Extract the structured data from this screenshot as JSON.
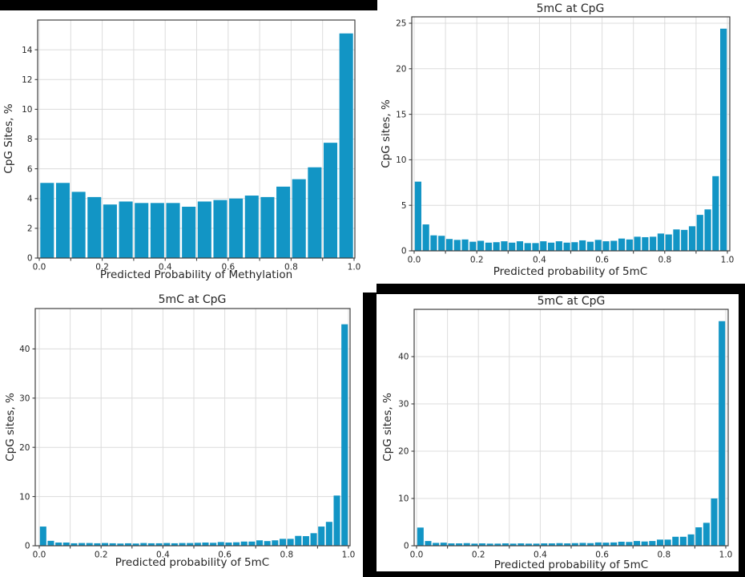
{
  "style": {
    "bar_color": "#1295c5",
    "grid_color": "#dcdcdc",
    "spine_color": "#3f3f3f",
    "text_color": "#262626",
    "redaction_color": "#000000",
    "background": "#ffffff"
  },
  "chart_data": [
    {
      "type": "bar",
      "position": "top-left",
      "title": "",
      "xlabel": "Predicted Probability of Methylation",
      "ylabel": "CpG Sites, %",
      "bin_start": 0.0,
      "bin_width": 0.05,
      "values": [
        5.05,
        5.05,
        4.45,
        4.1,
        3.6,
        3.8,
        3.7,
        3.7,
        3.7,
        3.45,
        3.8,
        3.9,
        4.0,
        4.2,
        4.1,
        4.8,
        5.3,
        6.1,
        7.75,
        15.1
      ],
      "xlim": [
        0.0,
        1.0
      ],
      "ylim": [
        0,
        16
      ],
      "xticks": [
        0.0,
        0.2,
        0.4,
        0.6,
        0.8,
        1.0
      ],
      "xtick_labels": [
        "0.0",
        "0.2",
        "0.4",
        "0.6",
        "0.8",
        "1.0"
      ],
      "yticks": [
        0,
        2,
        4,
        6,
        8,
        10,
        12,
        14
      ],
      "grid": true,
      "grid_x_step": 0.1
    },
    {
      "type": "bar",
      "position": "top-right",
      "title": "5mC at CpG",
      "xlabel": "Predicted probability of 5mC",
      "ylabel": "CpG sites, %",
      "bin_start": 0.0,
      "bin_width": 0.025,
      "values": [
        7.6,
        2.9,
        1.7,
        1.65,
        1.3,
        1.2,
        1.25,
        1.0,
        1.1,
        0.9,
        0.95,
        1.05,
        0.9,
        1.05,
        0.85,
        0.85,
        1.05,
        0.9,
        1.05,
        0.9,
        0.95,
        1.15,
        1.0,
        1.2,
        1.05,
        1.1,
        1.35,
        1.25,
        1.55,
        1.5,
        1.55,
        1.9,
        1.8,
        2.35,
        2.3,
        2.7,
        3.95,
        4.55,
        8.2,
        24.4
      ],
      "xlim": [
        0.0,
        1.0
      ],
      "ylim": [
        0,
        25.7
      ],
      "xticks": [
        0.0,
        0.2,
        0.4,
        0.6,
        0.8,
        1.0
      ],
      "xtick_labels": [
        "0.0",
        "0.2",
        "0.4",
        "0.6",
        "0.8",
        "1.0"
      ],
      "yticks": [
        0,
        5,
        10,
        15,
        20,
        25
      ],
      "grid": true,
      "grid_x_step": 0.1
    },
    {
      "type": "bar",
      "position": "bottom-left",
      "title": "5mC at CpG",
      "xlabel": "Predicted probability of 5mC",
      "ylabel": "CpG sites, %",
      "bin_start": 0.0,
      "bin_width": 0.025,
      "values": [
        3.9,
        1.0,
        0.65,
        0.65,
        0.5,
        0.55,
        0.55,
        0.5,
        0.55,
        0.5,
        0.45,
        0.5,
        0.45,
        0.55,
        0.5,
        0.5,
        0.55,
        0.5,
        0.55,
        0.55,
        0.6,
        0.65,
        0.6,
        0.75,
        0.65,
        0.7,
        0.85,
        0.85,
        1.1,
        0.95,
        1.1,
        1.4,
        1.4,
        2.0,
        1.95,
        2.55,
        3.9,
        4.85,
        10.2,
        45.0
      ],
      "xlim": [
        0.0,
        1.0
      ],
      "ylim": [
        0,
        48.2
      ],
      "xticks": [
        0.0,
        0.2,
        0.4,
        0.6,
        0.8,
        1.0
      ],
      "xtick_labels": [
        "0.0",
        "0.2",
        "0.4",
        "0.6",
        "0.8",
        "1.0"
      ],
      "yticks": [
        0,
        10,
        20,
        30,
        40
      ],
      "grid": true,
      "grid_x_step": 0.1
    },
    {
      "type": "bar",
      "position": "bottom-right",
      "title": "5mC at CpG",
      "xlabel": "Predicted probability of 5mC",
      "ylabel": "CpG sites, %",
      "bin_start": 0.0,
      "bin_width": 0.025,
      "values": [
        3.85,
        1.0,
        0.6,
        0.65,
        0.5,
        0.5,
        0.55,
        0.45,
        0.5,
        0.45,
        0.45,
        0.5,
        0.45,
        0.5,
        0.45,
        0.45,
        0.5,
        0.5,
        0.55,
        0.5,
        0.55,
        0.6,
        0.55,
        0.7,
        0.65,
        0.7,
        0.85,
        0.8,
        1.0,
        0.9,
        1.0,
        1.3,
        1.3,
        1.9,
        1.9,
        2.4,
        3.9,
        4.85,
        10.0,
        47.5
      ],
      "xlim": [
        0.0,
        1.0
      ],
      "ylim": [
        0,
        50
      ],
      "xticks": [
        0.0,
        0.2,
        0.4,
        0.6,
        0.8,
        1.0
      ],
      "xtick_labels": [
        "0.0",
        "0.2",
        "0.4",
        "0.6",
        "0.8",
        "1.0"
      ],
      "yticks": [
        0,
        10,
        20,
        30,
        40
      ],
      "grid": true,
      "grid_x_step": 0.1
    }
  ]
}
